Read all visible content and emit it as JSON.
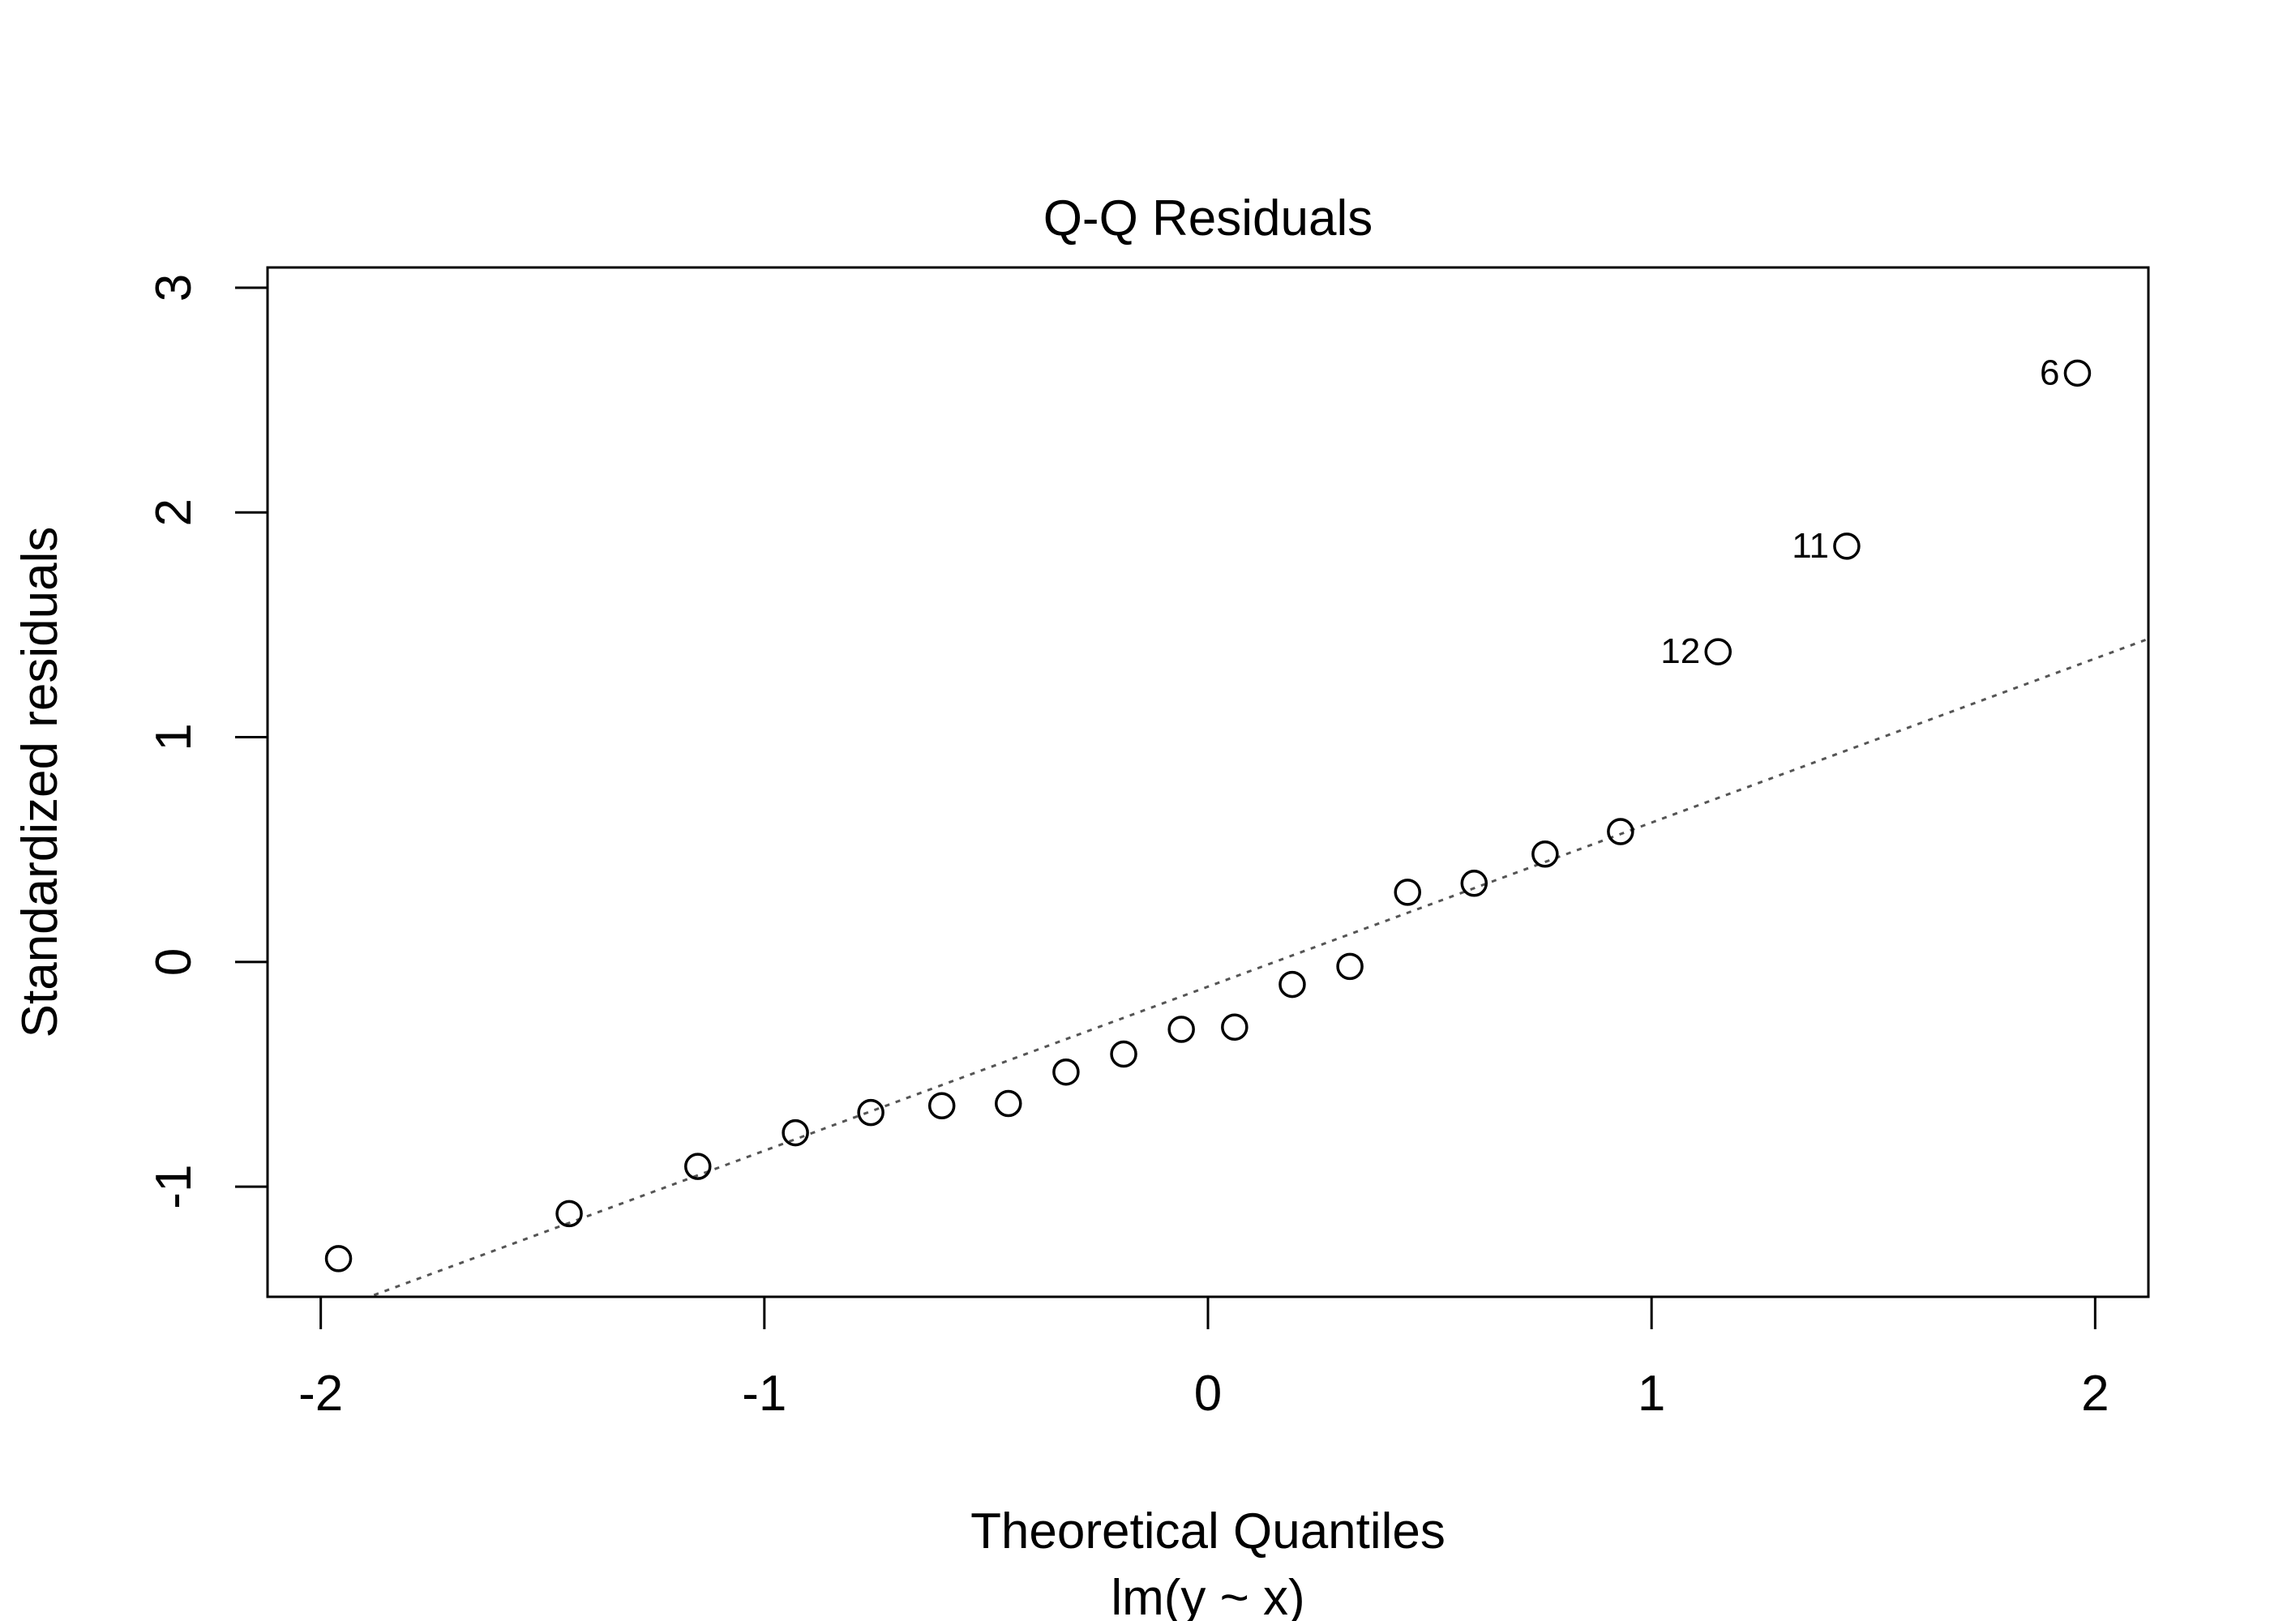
{
  "chart_data": {
    "type": "scatter",
    "title": "Q-Q Residuals",
    "xlabel": "Theoretical Quantiles",
    "sublabel": "lm(y ~ x)",
    "ylabel": "Standardized residuals",
    "xlim": [
      -2.12,
      2.12
    ],
    "ylim": [
      -1.49,
      3.09
    ],
    "x_ticks": [
      {
        "value": -2,
        "label": "-2"
      },
      {
        "value": -1,
        "label": "-1"
      },
      {
        "value": 0,
        "label": "0"
      },
      {
        "value": 1,
        "label": "1"
      },
      {
        "value": 2,
        "label": "2"
      }
    ],
    "y_ticks": [
      {
        "value": -1,
        "label": "-1"
      },
      {
        "value": 0,
        "label": "0"
      },
      {
        "value": 1,
        "label": "1"
      },
      {
        "value": 2,
        "label": "2"
      },
      {
        "value": 3,
        "label": "3"
      }
    ],
    "grid": false,
    "points": [
      {
        "x": -1.96,
        "y": -1.32,
        "label": ""
      },
      {
        "x": -1.44,
        "y": -1.12,
        "label": ""
      },
      {
        "x": -1.15,
        "y": -0.91,
        "label": ""
      },
      {
        "x": -0.93,
        "y": -0.76,
        "label": ""
      },
      {
        "x": -0.76,
        "y": -0.67,
        "label": ""
      },
      {
        "x": -0.6,
        "y": -0.64,
        "label": ""
      },
      {
        "x": -0.45,
        "y": -0.63,
        "label": ""
      },
      {
        "x": -0.32,
        "y": -0.49,
        "label": ""
      },
      {
        "x": -0.19,
        "y": -0.41,
        "label": ""
      },
      {
        "x": -0.06,
        "y": -0.3,
        "label": ""
      },
      {
        "x": 0.06,
        "y": -0.29,
        "label": ""
      },
      {
        "x": 0.19,
        "y": -0.1,
        "label": ""
      },
      {
        "x": 0.32,
        "y": -0.02,
        "label": ""
      },
      {
        "x": 0.45,
        "y": 0.31,
        "label": ""
      },
      {
        "x": 0.6,
        "y": 0.35,
        "label": ""
      },
      {
        "x": 0.76,
        "y": 0.48,
        "label": ""
      },
      {
        "x": 0.93,
        "y": 0.58,
        "label": ""
      },
      {
        "x": 1.15,
        "y": 1.38,
        "label": "12"
      },
      {
        "x": 1.44,
        "y": 1.85,
        "label": "11"
      },
      {
        "x": 1.96,
        "y": 2.62,
        "label": "6"
      }
    ],
    "reference_line": {
      "slope": 0.73,
      "intercept": -0.11,
      "style": "dotted",
      "color": "#555555"
    }
  }
}
